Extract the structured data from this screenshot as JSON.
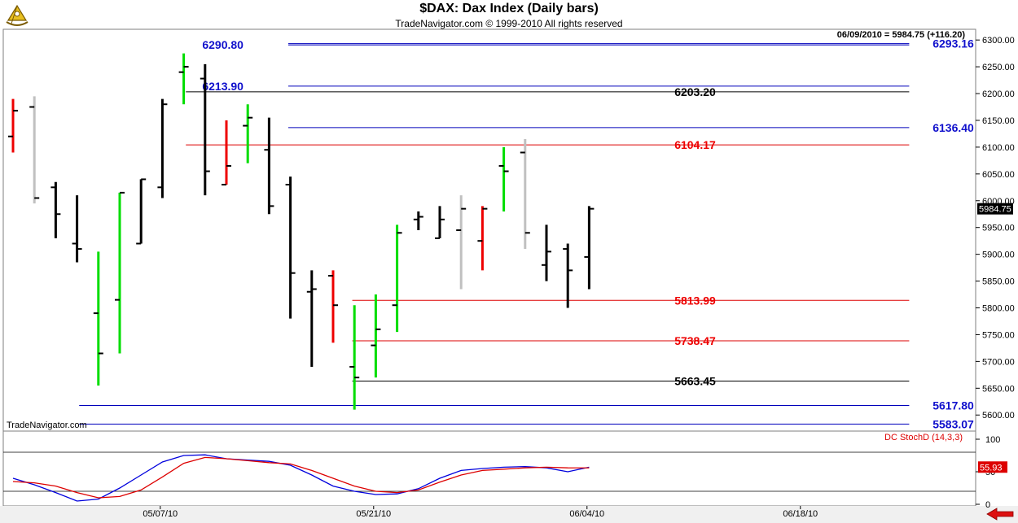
{
  "header": {
    "title": "$DAX:  Dax Index  (Daily bars)",
    "subtitle": "TradeNavigator.com © 1999-2010 All rights reserved"
  },
  "chart_data": [
    {
      "type": "bar",
      "subtype": "ohlc",
      "title": "$DAX:  Dax Index  (Daily bars)",
      "ylim": [
        5570,
        6320
      ],
      "y_ticks": [
        "6300.00",
        "6250.00",
        "6200.00",
        "6150.00",
        "6100.00",
        "6050.00",
        "6000.00",
        "5950.00",
        "5900.00",
        "5850.00",
        "5800.00",
        "5750.00",
        "5700.00",
        "5650.00",
        "5600.00"
      ],
      "y_tick_values": [
        6300,
        6250,
        6200,
        6150,
        6100,
        6050,
        6000,
        5950,
        5900,
        5850,
        5800,
        5750,
        5700,
        5650,
        5600
      ],
      "x_labels": [
        {
          "label": "05/07/10",
          "bar": 6.9
        },
        {
          "label": "05/21/10",
          "bar": 16.9
        },
        {
          "label": "06/04/10",
          "bar": 26.9
        },
        {
          "label": "06/18/10",
          "bar": 36.9
        }
      ],
      "info_readout": "06/09/2010 = 5984.75 (+116.20)",
      "last_price_label": "5984.75",
      "watermark": "TradeNavigator.com",
      "colors": {
        "black": "#000000",
        "red": "#ee0000",
        "green": "#00dd00",
        "gray": "#c0c0c0",
        "blue": "#0000bb",
        "line_black": "#000000",
        "line_red": "#dd0000"
      },
      "bars": [
        {
          "o": 6120,
          "h": 6190,
          "l": 6090,
          "c": 6168,
          "color": "red"
        },
        {
          "o": 6175,
          "h": 6195,
          "l": 5995,
          "c": 6005,
          "color": "gray"
        },
        {
          "o": 6025,
          "h": 6035,
          "l": 5930,
          "c": 5975,
          "color": "black"
        },
        {
          "o": 5920,
          "h": 6010,
          "l": 5885,
          "c": 5910,
          "color": "black"
        },
        {
          "o": 5790,
          "h": 5905,
          "l": 5655,
          "c": 5715,
          "color": "green"
        },
        {
          "o": 5815,
          "h": 6015,
          "l": 5715,
          "c": 6015,
          "color": "green"
        },
        {
          "o": 5920,
          "h": 6040,
          "l": 5920,
          "c": 6040,
          "color": "black"
        },
        {
          "o": 6025,
          "h": 6190,
          "l": 6005,
          "c": 6180,
          "color": "black"
        },
        {
          "o": 6240,
          "h": 6275,
          "l": 6180,
          "c": 6250,
          "color": "green"
        },
        {
          "o": 6228,
          "h": 6255,
          "l": 6010,
          "c": 6055,
          "color": "black"
        },
        {
          "o": 6030,
          "h": 6150,
          "l": 6030,
          "c": 6065,
          "color": "red"
        },
        {
          "o": 6140,
          "h": 6180,
          "l": 6070,
          "c": 6155,
          "color": "green"
        },
        {
          "o": 6095,
          "h": 6155,
          "l": 5975,
          "c": 5990,
          "color": "black"
        },
        {
          "o": 6030,
          "h": 6045,
          "l": 5780,
          "c": 5865,
          "color": "black"
        },
        {
          "o": 5830,
          "h": 5870,
          "l": 5690,
          "c": 5835,
          "color": "black"
        },
        {
          "o": 5860,
          "h": 5870,
          "l": 5735,
          "c": 5805,
          "color": "red"
        },
        {
          "o": 5690,
          "h": 5805,
          "l": 5610,
          "c": 5670,
          "color": "green"
        },
        {
          "o": 5730,
          "h": 5825,
          "l": 5670,
          "c": 5760,
          "color": "green"
        },
        {
          "o": 5805,
          "h": 5955,
          "l": 5755,
          "c": 5940,
          "color": "green"
        },
        {
          "o": 5965,
          "h": 5980,
          "l": 5945,
          "c": 5970,
          "color": "black"
        },
        {
          "o": 5930,
          "h": 5990,
          "l": 5930,
          "c": 5965,
          "color": "black"
        },
        {
          "o": 5945,
          "h": 6010,
          "l": 5835,
          "c": 5985,
          "color": "gray"
        },
        {
          "o": 5925,
          "h": 5990,
          "l": 5870,
          "c": 5985,
          "color": "red"
        },
        {
          "o": 6065,
          "h": 6100,
          "l": 5980,
          "c": 6055,
          "color": "green"
        },
        {
          "o": 6090,
          "h": 6115,
          "l": 5910,
          "c": 5940,
          "color": "gray"
        },
        {
          "o": 5880,
          "h": 5955,
          "l": 5850,
          "c": 5905,
          "color": "black"
        },
        {
          "o": 5910,
          "h": 5920,
          "l": 5800,
          "c": 5870,
          "color": "black"
        },
        {
          "o": 5895,
          "h": 5990,
          "l": 5835,
          "c": 5985,
          "color": "black"
        }
      ],
      "levels": [
        {
          "label": "6290.80",
          "value": 6290.8,
          "color": "blue",
          "start_bar": 12.9,
          "end_bar": 42,
          "label_side": "left",
          "label_bar": 10.8
        },
        {
          "label": "6293.16",
          "value": 6293.16,
          "color": "blue",
          "start_bar": 12.9,
          "end_bar": 42,
          "label_side": "right",
          "label_bar": 43.1
        },
        {
          "label": "6213.90",
          "value": 6213.9,
          "color": "blue",
          "start_bar": 12.9,
          "end_bar": 42,
          "label_side": "left",
          "label_bar": 10.8
        },
        {
          "label": "6203.20",
          "value": 6203.2,
          "color": "line_black",
          "start_bar": 8.1,
          "end_bar": 42,
          "label_side": "right",
          "label_bar": 31.0
        },
        {
          "label": "6136.40",
          "value": 6136.4,
          "color": "blue",
          "start_bar": 12.9,
          "end_bar": 42,
          "label_side": "right",
          "label_bar": 43.1
        },
        {
          "label": "6104.17",
          "value": 6104.17,
          "color": "line_red",
          "start_bar": 8.1,
          "end_bar": 42,
          "label_side": "right",
          "label_bar": 31.0
        },
        {
          "label": "5813.99",
          "value": 5813.99,
          "color": "line_red",
          "start_bar": 15.9,
          "end_bar": 42,
          "label_side": "right",
          "label_bar": 31.0
        },
        {
          "label": "5738.47",
          "value": 5738.47,
          "color": "line_red",
          "start_bar": 15.9,
          "end_bar": 42,
          "label_side": "right",
          "label_bar": 31.0
        },
        {
          "label": "5663.45",
          "value": 5663.45,
          "color": "line_black",
          "start_bar": 15.9,
          "end_bar": 42,
          "label_side": "right",
          "label_bar": 31.0
        },
        {
          "label": "5617.80",
          "value": 5617.8,
          "color": "blue",
          "start_bar": 3.1,
          "end_bar": 42,
          "label_side": "right",
          "label_bar": 43.1
        },
        {
          "label": "5583.07",
          "value": 5583.07,
          "color": "blue",
          "start_bar": 3.1,
          "end_bar": 42,
          "label_side": "right",
          "label_bar": 43.1
        }
      ]
    },
    {
      "type": "line",
      "title": "DC StochD (14,3,3)",
      "ylim": [
        0,
        100
      ],
      "y_ticks": [
        "100",
        "50",
        "0"
      ],
      "y_tick_values": [
        100,
        50,
        0
      ],
      "reference_lines": [
        80,
        20
      ],
      "value_label": "55.93",
      "series": [
        {
          "name": "",
          "color": "#0000dd",
          "values": [
            40,
            30,
            18,
            5,
            8,
            25,
            45,
            65,
            75,
            76,
            70,
            68,
            66,
            60,
            45,
            28,
            20,
            15,
            16,
            24,
            40,
            52,
            55,
            57,
            58,
            56,
            50,
            57
          ]
        },
        {
          "name": "",
          "color": "#dd0000",
          "values": [
            35,
            33,
            28,
            18,
            10,
            12,
            22,
            42,
            63,
            72,
            70,
            67,
            64,
            62,
            52,
            40,
            28,
            20,
            18,
            22,
            34,
            45,
            52,
            54,
            56,
            57,
            56,
            55.93
          ]
        }
      ]
    }
  ]
}
